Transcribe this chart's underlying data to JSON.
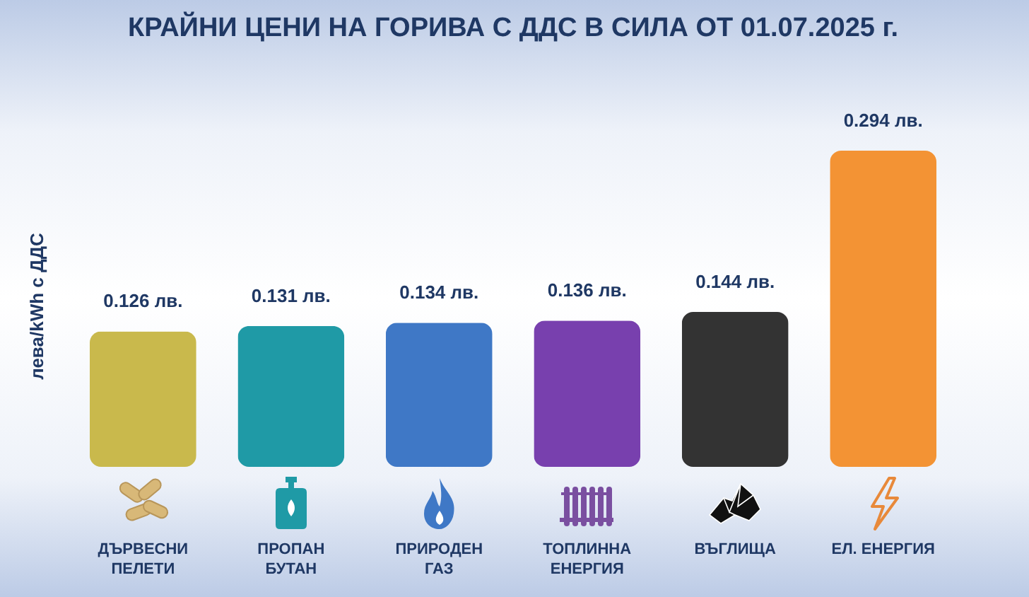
{
  "chart_data": {
    "type": "bar",
    "title": "КРАЙНИ ЦЕНИ НА ГОРИВА С ДДС В СИЛА ОТ 01.07.2025 г.",
    "ylabel": "лева/kWh с ДДС",
    "categories": [
      "ДЪРВЕСНИ ПЕЛЕТИ",
      "ПРОПАН БУТАН",
      "ПРИРОДЕН ГАЗ",
      "ТОПЛИННА ЕНЕРГИЯ",
      "ВЪГЛИЩА",
      "ЕЛ. ЕНЕРГИЯ"
    ],
    "values": [
      0.126,
      0.131,
      0.134,
      0.136,
      0.144,
      0.294
    ],
    "colors": [
      "#c9b94c",
      "#1f9aa6",
      "#3f78c6",
      "#7840ae",
      "#333333",
      "#f39334"
    ],
    "value_labels": [
      "0.126 лв.",
      "0.131 лв.",
      "0.134 лв.",
      "0.136 лв.",
      "0.144 лв.",
      "0.294 лв."
    ]
  }
}
